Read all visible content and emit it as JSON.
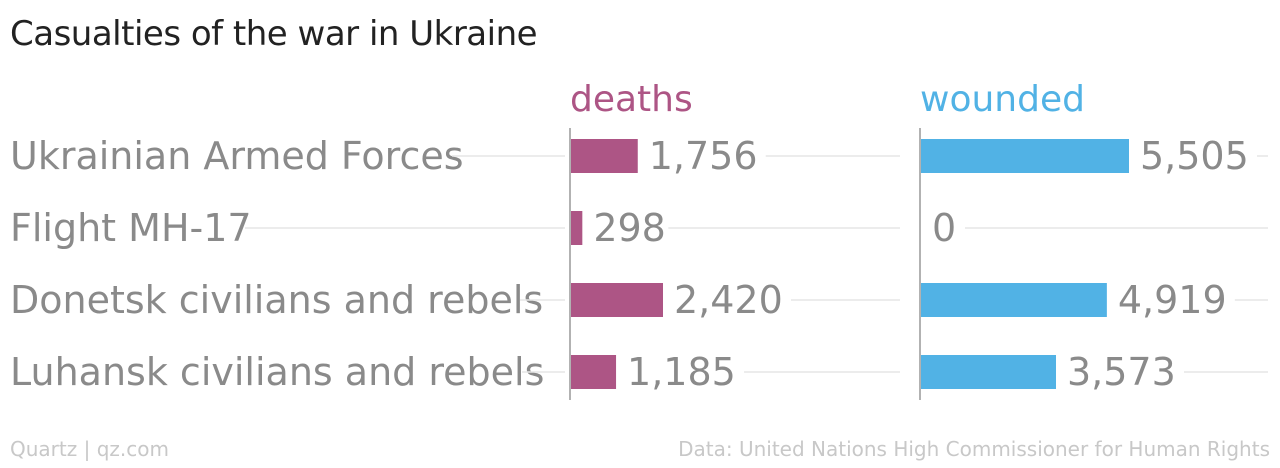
{
  "chart_data": {
    "type": "bar",
    "title": "Casualties of the war in Ukraine",
    "categories": [
      "Ukrainian Armed Forces",
      "Flight MH-17",
      "Donetsk civilians and rebels",
      "Luhansk civilians and rebels"
    ],
    "series": [
      {
        "name": "deaths",
        "values": [
          1756,
          298,
          2420,
          1185
        ],
        "labels": [
          "1,756",
          "298",
          "2,420",
          "1,185"
        ],
        "color": "#ad5585"
      },
      {
        "name": "wounded",
        "values": [
          5505,
          0,
          4919,
          3573
        ],
        "labels": [
          "5,505",
          "0",
          "4,919",
          "3,573"
        ],
        "color": "#51b2e5"
      }
    ],
    "grid": true
  },
  "footer": {
    "credit": "Quartz | qz.com",
    "source": "Data: United Nations High Commissioner for Human Rights"
  },
  "colors": {
    "label_text": "#8a8a8a",
    "grid": "#e6e6e6",
    "axis": "#999999"
  }
}
